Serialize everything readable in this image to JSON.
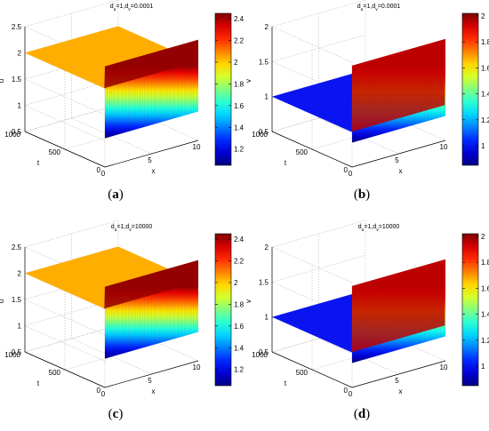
{
  "colors": {
    "plane_u": "#FFAE00",
    "plane_v": "#0A14F0",
    "colormap": "jet"
  },
  "chart_data": [
    {
      "type": "surface3d",
      "caption": "(a)",
      "title": "d_u=1,d_v=0.0001",
      "xlabel": "x",
      "ylabel": "t",
      "zlabel": "u",
      "xlim": [
        0,
        10
      ],
      "ylim": [
        0,
        1000
      ],
      "zlim": [
        0.5,
        2.5
      ],
      "x_ticks": [
        "0",
        "5",
        "10"
      ],
      "y_ticks": [
        "0",
        "500",
        "1000"
      ],
      "z_ticks": [
        "0.5",
        "1",
        "1.5",
        "2",
        "2.5"
      ],
      "plane_value": 2,
      "initial_range": [
        1.05,
        2.42
      ],
      "colorbar_ticks": [
        "1.2",
        "1.4",
        "1.6",
        "1.8",
        "2",
        "2.2",
        "2.4"
      ],
      "colorbar_range": [
        1.05,
        2.45
      ]
    },
    {
      "type": "surface3d",
      "caption": "(b)",
      "title": "d_u=1,d_v=0.0001",
      "xlabel": "x",
      "ylabel": "t",
      "zlabel": "v",
      "xlim": [
        0,
        10
      ],
      "ylim": [
        0,
        1000
      ],
      "zlim": [
        0.5,
        2
      ],
      "x_ticks": [
        "0",
        "5",
        "10"
      ],
      "y_ticks": [
        "0",
        "500",
        "1000"
      ],
      "z_ticks": [
        "0.5",
        "1",
        "1.5",
        "2"
      ],
      "plane_value": 1,
      "initial_range": [
        0.85,
        1.95
      ],
      "colorbar_ticks": [
        "1",
        "1.2",
        "1.4",
        "1.6",
        "1.8",
        "2"
      ],
      "colorbar_range": [
        0.85,
        2.02
      ]
    },
    {
      "type": "surface3d",
      "caption": "(c)",
      "title": "d_u=1,d_v=10000",
      "xlabel": "x",
      "ylabel": "t",
      "zlabel": "u",
      "xlim": [
        0,
        10
      ],
      "ylim": [
        0,
        1000
      ],
      "zlim": [
        0.5,
        2.5
      ],
      "x_ticks": [
        "0",
        "5",
        "10"
      ],
      "y_ticks": [
        "0",
        "500",
        "1000"
      ],
      "z_ticks": [
        "0.5",
        "1",
        "1.5",
        "2",
        "2.5"
      ],
      "plane_value": 2,
      "initial_range": [
        1.05,
        2.42
      ],
      "colorbar_ticks": [
        "1.2",
        "1.4",
        "1.6",
        "1.8",
        "2",
        "2.2",
        "2.4"
      ],
      "colorbar_range": [
        1.05,
        2.45
      ]
    },
    {
      "type": "surface3d",
      "caption": "(d)",
      "title": "d_u=1,d_v=10000",
      "xlabel": "x",
      "ylabel": "t",
      "zlabel": "v",
      "xlim": [
        0,
        10
      ],
      "ylim": [
        0,
        1000
      ],
      "zlim": [
        0.5,
        2
      ],
      "x_ticks": [
        "0",
        "5",
        "10"
      ],
      "y_ticks": [
        "0",
        "500",
        "1000"
      ],
      "z_ticks": [
        "0.5",
        "1",
        "1.5",
        "2"
      ],
      "plane_value": 1,
      "initial_range": [
        0.85,
        1.95
      ],
      "colorbar_ticks": [
        "1",
        "1.2",
        "1.4",
        "1.6",
        "1.8",
        "2"
      ],
      "colorbar_range": [
        0.85,
        2.02
      ]
    }
  ]
}
